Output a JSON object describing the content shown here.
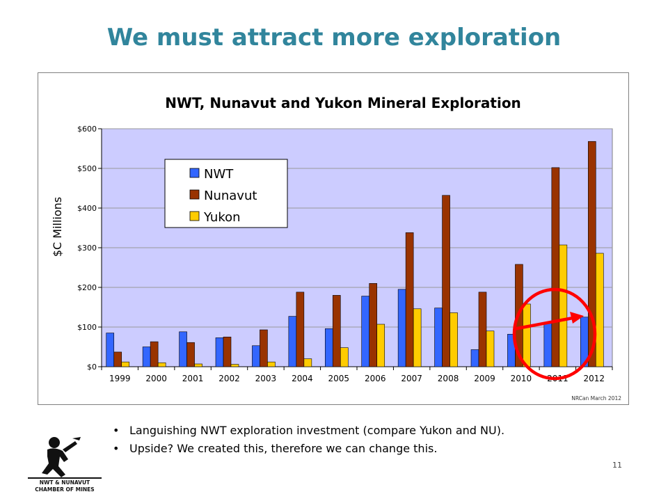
{
  "slide": {
    "title": "We must attract more exploration",
    "bullets": [
      "Languishing NWT exploration investment (compare Yukon and NU).",
      "Upside? We created this, therefore we can change this."
    ],
    "page_number": "11",
    "logo_text": [
      "NWT & NUNAVUT",
      "CHAMBER OF MINES"
    ]
  },
  "chart_data": {
    "type": "bar",
    "title": "NWT, Nunavut and Yukon Mineral Exploration",
    "xlabel": "",
    "ylabel": "$C Millions",
    "ylim": [
      0,
      600
    ],
    "yticks": [
      0,
      100,
      200,
      300,
      400,
      500,
      600
    ],
    "ytick_labels": [
      "$0",
      "$100",
      "$200",
      "$300",
      "$400",
      "$500",
      "$600"
    ],
    "categories": [
      "1999",
      "2000",
      "2001",
      "2002",
      "2003",
      "2004",
      "2005",
      "2006",
      "2007",
      "2008",
      "2009",
      "2010",
      "2011",
      "2012"
    ],
    "series": [
      {
        "name": "NWT",
        "color": "#3366ff",
        "values": [
          85,
          50,
          88,
          73,
          53,
          127,
          96,
          178,
          195,
          148,
          43,
          82,
          110,
          125
        ]
      },
      {
        "name": "Nunavut",
        "color": "#993300",
        "values": [
          37,
          63,
          61,
          75,
          93,
          188,
          180,
          210,
          338,
          432,
          188,
          258,
          502,
          568
        ]
      },
      {
        "name": "Yukon",
        "color": "#ffcc00",
        "values": [
          12,
          10,
          7,
          6,
          12,
          20,
          48,
          107,
          146,
          136,
          90,
          158,
          307,
          286
        ]
      }
    ],
    "legend_position": "top-left",
    "grid": true,
    "plot_background": "#ccccff",
    "source_note": "NRCan March 2012",
    "annotation": {
      "shape": "red circle with red arrow",
      "color": "#ff0000"
    }
  }
}
